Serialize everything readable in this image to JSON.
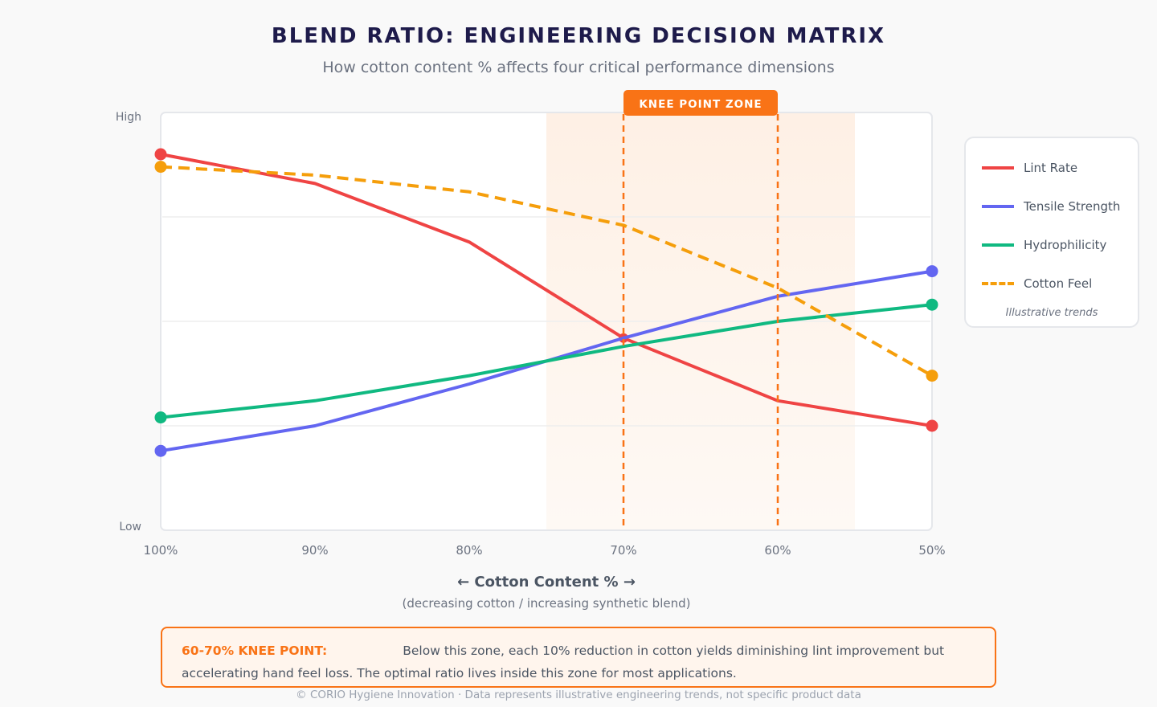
{
  "title": "BLEND RATIO: ENGINEERING DECISION MATRIX",
  "subtitle": "How cotton content % affects four critical performance dimensions",
  "chart_data": {
    "type": "line",
    "x": [
      100,
      90,
      80,
      70,
      60,
      50
    ],
    "x_tick_labels": [
      "100%",
      "90%",
      "80%",
      "70%",
      "60%",
      "50%"
    ],
    "xlim": [
      100,
      50
    ],
    "ylim": [
      0,
      100
    ],
    "y_tick_labels": {
      "high": "High",
      "low": "Low"
    },
    "xlabel": "← Cotton Content % →",
    "xlabel_sub": "(decreasing cotton / increasing synthetic blend)",
    "grid": true,
    "legend_position": "right",
    "legend_note": "Illustrative trends",
    "series": [
      {
        "name": "Lint Rate",
        "color": "#ef4444",
        "style": "solid",
        "values": [
          90,
          83,
          69,
          46,
          31,
          25
        ]
      },
      {
        "name": "Tensile Strength",
        "color": "#6366f1",
        "style": "solid",
        "values": [
          19,
          25,
          35,
          46,
          56,
          62
        ]
      },
      {
        "name": "Hydrophilicity",
        "color": "#10b981",
        "style": "solid",
        "values": [
          27,
          31,
          37,
          44,
          50,
          54
        ]
      },
      {
        "name": "Cotton Feel",
        "color": "#f59e0b",
        "style": "dashed",
        "values": [
          87,
          85,
          81,
          73,
          58,
          37
        ]
      }
    ],
    "knee_zone": {
      "label": "KNEE POINT ZONE",
      "shade_range": [
        75,
        55
      ],
      "lines": [
        70,
        60
      ],
      "color": "#f97316"
    }
  },
  "note": {
    "heading": "60-70% KNEE POINT:",
    "text": "Below this zone, each 10% reduction in cotton yields diminishing lint improvement but accelerating hand feel loss. The optimal ratio lives inside this zone for most applications."
  },
  "footer": "© CORIO Hygiene Innovation · Data represents illustrative engineering trends, not specific product data"
}
